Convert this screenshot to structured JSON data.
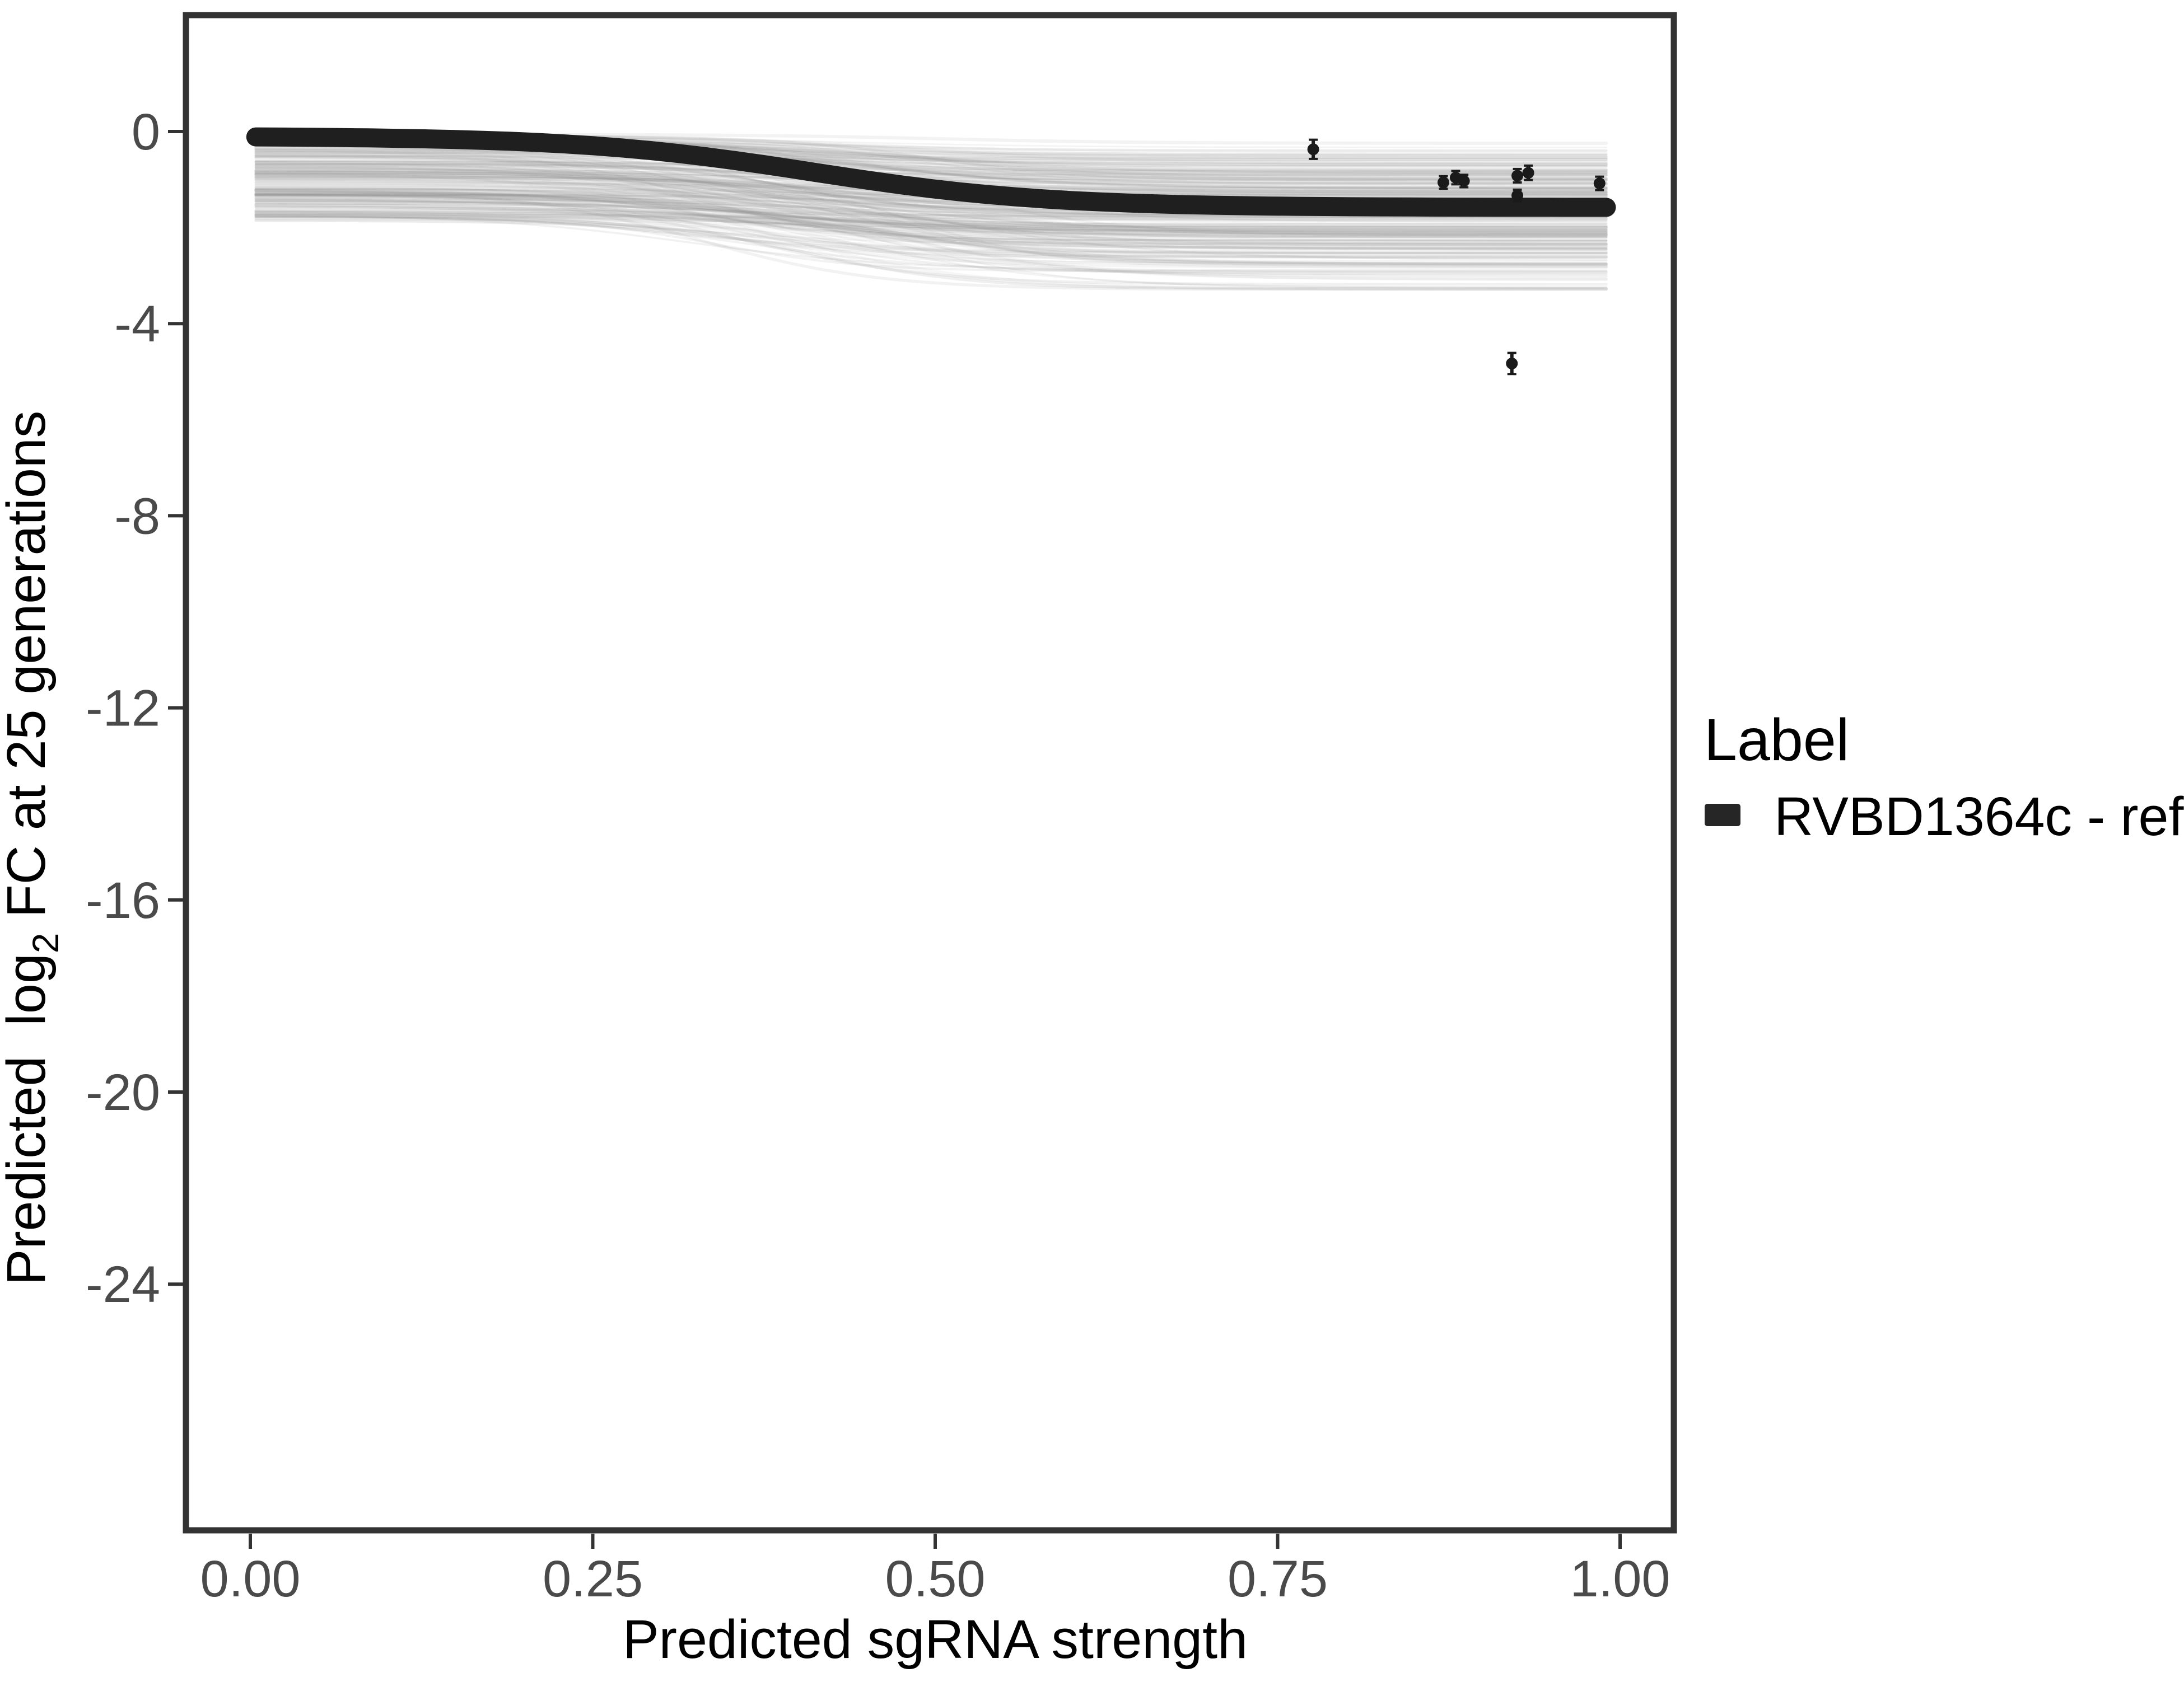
{
  "figure": {
    "background": "#ffffff"
  },
  "chart_data": {
    "type": "line",
    "title": "",
    "xlabel": "Predicted sgRNA strength",
    "ylabel": {
      "prefix": "Predicted  log",
      "subscript": "2",
      "suffix": " FC at 25 generations"
    },
    "x_ticks": [
      {
        "label": "0.00",
        "value": 0.0
      },
      {
        "label": "0.25",
        "value": 0.25
      },
      {
        "label": "0.50",
        "value": 0.5
      },
      {
        "label": "0.75",
        "value": 0.75
      },
      {
        "label": "1.00",
        "value": 1.0
      }
    ],
    "y_ticks": [
      {
        "label": "0",
        "value": 0
      },
      {
        "label": "-4",
        "value": -4
      },
      {
        "label": "-8",
        "value": -8
      },
      {
        "label": "-12",
        "value": -12
      },
      {
        "label": "-16",
        "value": -16
      },
      {
        "label": "-20",
        "value": -20
      },
      {
        "label": "-24",
        "value": -24
      }
    ],
    "xlim": [
      -0.047,
      1.042
    ],
    "ylim": [
      -29.1,
      2.45
    ],
    "grid": false,
    "legend": {
      "title": "Label",
      "position": "right",
      "entries": [
        {
          "label": "RVBD1364c - ref",
          "color": "#262626",
          "key": "thick-line"
        }
      ]
    },
    "series": [
      {
        "name": "RVBD1364c - ref",
        "kind": "sigmoid_fit",
        "color": "#1f1f1f",
        "x_range": [
          0.004,
          0.99
        ],
        "y_start": -0.1,
        "y_plateau": -1.58,
        "midpoint": 0.41,
        "scale": 0.085
      }
    ],
    "posterior_ensemble": {
      "description": "translucent gray posterior sample sigmoid curves forming a band",
      "n_curves": 260,
      "color": "#8f8f8f",
      "x_range": [
        0.004,
        0.99
      ],
      "band_top_at_x0": -0.06,
      "band_bottom_at_x0": -1.95,
      "band_top_at_x1": -0.22,
      "band_bottom_at_x1": -3.3,
      "midpoint_range": [
        0.31,
        0.51
      ]
    },
    "points": [
      {
        "x": 0.776,
        "y": -0.37,
        "err": 0.2
      },
      {
        "x": 0.871,
        "y": -1.06,
        "err": 0.13
      },
      {
        "x": 0.88,
        "y": -0.96,
        "err": 0.14
      },
      {
        "x": 0.886,
        "y": -1.03,
        "err": 0.13
      },
      {
        "x": 0.925,
        "y": -0.92,
        "err": 0.14
      },
      {
        "x": 0.933,
        "y": -0.86,
        "err": 0.15
      },
      {
        "x": 0.925,
        "y": -1.33,
        "err": 0.12
      },
      {
        "x": 0.985,
        "y": -1.08,
        "err": 0.14
      },
      {
        "x": 0.921,
        "y": -4.83,
        "err": 0.22
      }
    ],
    "colors": {
      "point": "#1a1a1a",
      "axis_line": "#333333",
      "tick_label": "#4a4a4a",
      "axis_title": "#000000",
      "legend_text": "#000000"
    }
  }
}
